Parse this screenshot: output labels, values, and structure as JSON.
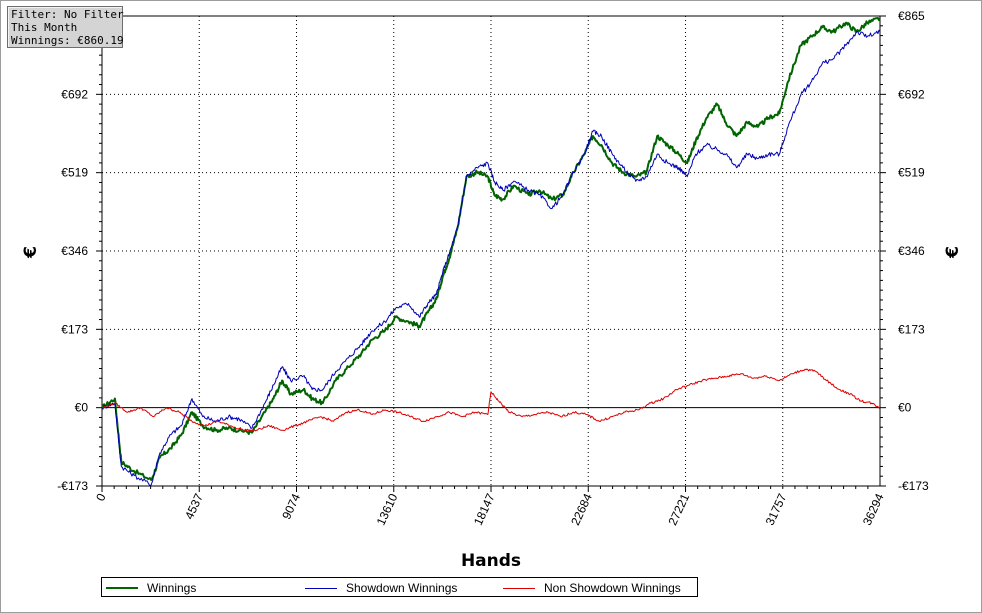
{
  "filter_box": {
    "line1": "Filter: No Filter",
    "line2": "This Month",
    "line3": "Winnings: €860.19"
  },
  "chart_data": {
    "type": "line",
    "xlabel": "Hands",
    "ylabel_left": "€",
    "ylabel_right": "€",
    "xlim": [
      0,
      36294
    ],
    "ylim": [
      -173,
      865
    ],
    "x_ticks": [
      0,
      4537,
      9074,
      13610,
      18147,
      22684,
      27221,
      31757,
      36294
    ],
    "x_tick_labels": [
      "0",
      "4537",
      "9074",
      "13610",
      "18147",
      "22684",
      "27221",
      "31757",
      "36294"
    ],
    "y_ticks": [
      -173,
      0,
      173,
      346,
      519,
      692,
      865
    ],
    "y_tick_labels": [
      "-€173",
      "€0",
      "€173",
      "€346",
      "€519",
      "€692",
      "€865"
    ],
    "grid": true,
    "legend_position": "bottom",
    "series": [
      {
        "name": "Winnings",
        "color": "#006400",
        "points": [
          [
            0,
            0
          ],
          [
            600,
            20
          ],
          [
            900,
            -120
          ],
          [
            1500,
            -140
          ],
          [
            2300,
            -160
          ],
          [
            2700,
            -110
          ],
          [
            3200,
            -90
          ],
          [
            3700,
            -60
          ],
          [
            4200,
            -10
          ],
          [
            4700,
            -40
          ],
          [
            5300,
            -50
          ],
          [
            5900,
            -45
          ],
          [
            6400,
            -50
          ],
          [
            7000,
            -55
          ],
          [
            7600,
            -10
          ],
          [
            8000,
            20
          ],
          [
            8400,
            60
          ],
          [
            8800,
            30
          ],
          [
            9400,
            40
          ],
          [
            9800,
            20
          ],
          [
            10300,
            10
          ],
          [
            10900,
            60
          ],
          [
            11500,
            90
          ],
          [
            12100,
            120
          ],
          [
            12600,
            150
          ],
          [
            13200,
            170
          ],
          [
            13700,
            200
          ],
          [
            14300,
            190
          ],
          [
            14800,
            180
          ],
          [
            15200,
            210
          ],
          [
            15600,
            240
          ],
          [
            15900,
            290
          ],
          [
            16200,
            330
          ],
          [
            16600,
            400
          ],
          [
            17000,
            510
          ],
          [
            17500,
            520
          ],
          [
            18000,
            510
          ],
          [
            18300,
            470
          ],
          [
            18700,
            460
          ],
          [
            19200,
            490
          ],
          [
            19900,
            470
          ],
          [
            20400,
            480
          ],
          [
            21000,
            460
          ],
          [
            21500,
            470
          ],
          [
            22000,
            520
          ],
          [
            22500,
            560
          ],
          [
            22900,
            600
          ],
          [
            23300,
            580
          ],
          [
            23800,
            540
          ],
          [
            24300,
            520
          ],
          [
            24900,
            510
          ],
          [
            25400,
            520
          ],
          [
            25900,
            600
          ],
          [
            26400,
            580
          ],
          [
            26900,
            560
          ],
          [
            27300,
            540
          ],
          [
            27700,
            590
          ],
          [
            28200,
            640
          ],
          [
            28700,
            670
          ],
          [
            29100,
            630
          ],
          [
            29600,
            600
          ],
          [
            30100,
            630
          ],
          [
            30600,
            620
          ],
          [
            31100,
            640
          ],
          [
            31600,
            650
          ],
          [
            32000,
            720
          ],
          [
            32600,
            800
          ],
          [
            33100,
            820
          ],
          [
            33600,
            840
          ],
          [
            34100,
            830
          ],
          [
            34700,
            850
          ],
          [
            35200,
            830
          ],
          [
            35700,
            850
          ],
          [
            36294,
            860
          ]
        ]
      },
      {
        "name": "Showdown Winnings",
        "color": "#0000b4",
        "points": [
          [
            0,
            0
          ],
          [
            600,
            10
          ],
          [
            900,
            -130
          ],
          [
            1500,
            -150
          ],
          [
            2300,
            -170
          ],
          [
            2700,
            -100
          ],
          [
            3200,
            -60
          ],
          [
            3700,
            -40
          ],
          [
            4200,
            20
          ],
          [
            4700,
            -20
          ],
          [
            5300,
            -30
          ],
          [
            5900,
            -20
          ],
          [
            6400,
            -25
          ],
          [
            7000,
            -45
          ],
          [
            7600,
            10
          ],
          [
            8000,
            50
          ],
          [
            8400,
            90
          ],
          [
            8800,
            60
          ],
          [
            9400,
            70
          ],
          [
            9800,
            40
          ],
          [
            10300,
            40
          ],
          [
            10900,
            80
          ],
          [
            11500,
            110
          ],
          [
            12100,
            140
          ],
          [
            12600,
            170
          ],
          [
            13200,
            190
          ],
          [
            13700,
            220
          ],
          [
            14300,
            230
          ],
          [
            14800,
            200
          ],
          [
            15200,
            230
          ],
          [
            15600,
            250
          ],
          [
            15900,
            300
          ],
          [
            16200,
            340
          ],
          [
            16600,
            400
          ],
          [
            17000,
            510
          ],
          [
            17500,
            530
          ],
          [
            18000,
            540
          ],
          [
            18300,
            500
          ],
          [
            18700,
            480
          ],
          [
            19200,
            500
          ],
          [
            19900,
            480
          ],
          [
            20400,
            470
          ],
          [
            21000,
            440
          ],
          [
            21500,
            470
          ],
          [
            22000,
            520
          ],
          [
            22500,
            560
          ],
          [
            22900,
            610
          ],
          [
            23300,
            600
          ],
          [
            23800,
            560
          ],
          [
            24300,
            530
          ],
          [
            24900,
            500
          ],
          [
            25400,
            510
          ],
          [
            25900,
            560
          ],
          [
            26400,
            540
          ],
          [
            26900,
            530
          ],
          [
            27300,
            510
          ],
          [
            27700,
            560
          ],
          [
            28200,
            580
          ],
          [
            28700,
            570
          ],
          [
            29100,
            560
          ],
          [
            29600,
            530
          ],
          [
            30100,
            560
          ],
          [
            30600,
            550
          ],
          [
            31100,
            560
          ],
          [
            31600,
            560
          ],
          [
            32000,
            620
          ],
          [
            32600,
            690
          ],
          [
            33100,
            720
          ],
          [
            33600,
            760
          ],
          [
            34100,
            770
          ],
          [
            34700,
            800
          ],
          [
            35200,
            830
          ],
          [
            35700,
            820
          ],
          [
            36294,
            830
          ]
        ]
      },
      {
        "name": "Non Showdown Winnings",
        "color": "#dc0000",
        "points": [
          [
            0,
            0
          ],
          [
            600,
            10
          ],
          [
            1200,
            -10
          ],
          [
            1800,
            0
          ],
          [
            2400,
            -20
          ],
          [
            3000,
            0
          ],
          [
            3600,
            -10
          ],
          [
            4200,
            -30
          ],
          [
            4800,
            -40
          ],
          [
            5400,
            -30
          ],
          [
            6000,
            -40
          ],
          [
            6600,
            -50
          ],
          [
            7200,
            -50
          ],
          [
            7800,
            -40
          ],
          [
            8400,
            -50
          ],
          [
            9000,
            -40
          ],
          [
            9600,
            -30
          ],
          [
            10200,
            -20
          ],
          [
            10800,
            -30
          ],
          [
            11400,
            -10
          ],
          [
            12000,
            -5
          ],
          [
            12600,
            -15
          ],
          [
            13200,
            -5
          ],
          [
            13800,
            -10
          ],
          [
            14400,
            -20
          ],
          [
            15000,
            -30
          ],
          [
            15600,
            -20
          ],
          [
            16200,
            -10
          ],
          [
            16800,
            -20
          ],
          [
            17400,
            -10
          ],
          [
            18000,
            -15
          ],
          [
            18147,
            35
          ],
          [
            18500,
            15
          ],
          [
            19000,
            -10
          ],
          [
            19600,
            -20
          ],
          [
            20200,
            -15
          ],
          [
            20800,
            -10
          ],
          [
            21400,
            -20
          ],
          [
            22000,
            -10
          ],
          [
            22600,
            -15
          ],
          [
            23200,
            -30
          ],
          [
            23800,
            -20
          ],
          [
            24400,
            -10
          ],
          [
            25000,
            -5
          ],
          [
            25600,
            10
          ],
          [
            26200,
            20
          ],
          [
            26800,
            40
          ],
          [
            27400,
            50
          ],
          [
            28000,
            60
          ],
          [
            28600,
            65
          ],
          [
            29200,
            70
          ],
          [
            29800,
            75
          ],
          [
            30400,
            65
          ],
          [
            31000,
            70
          ],
          [
            31600,
            60
          ],
          [
            32200,
            75
          ],
          [
            32800,
            85
          ],
          [
            33300,
            80
          ],
          [
            33800,
            60
          ],
          [
            34400,
            40
          ],
          [
            34900,
            30
          ],
          [
            35400,
            15
          ],
          [
            35900,
            10
          ],
          [
            36294,
            0
          ]
        ]
      }
    ]
  }
}
